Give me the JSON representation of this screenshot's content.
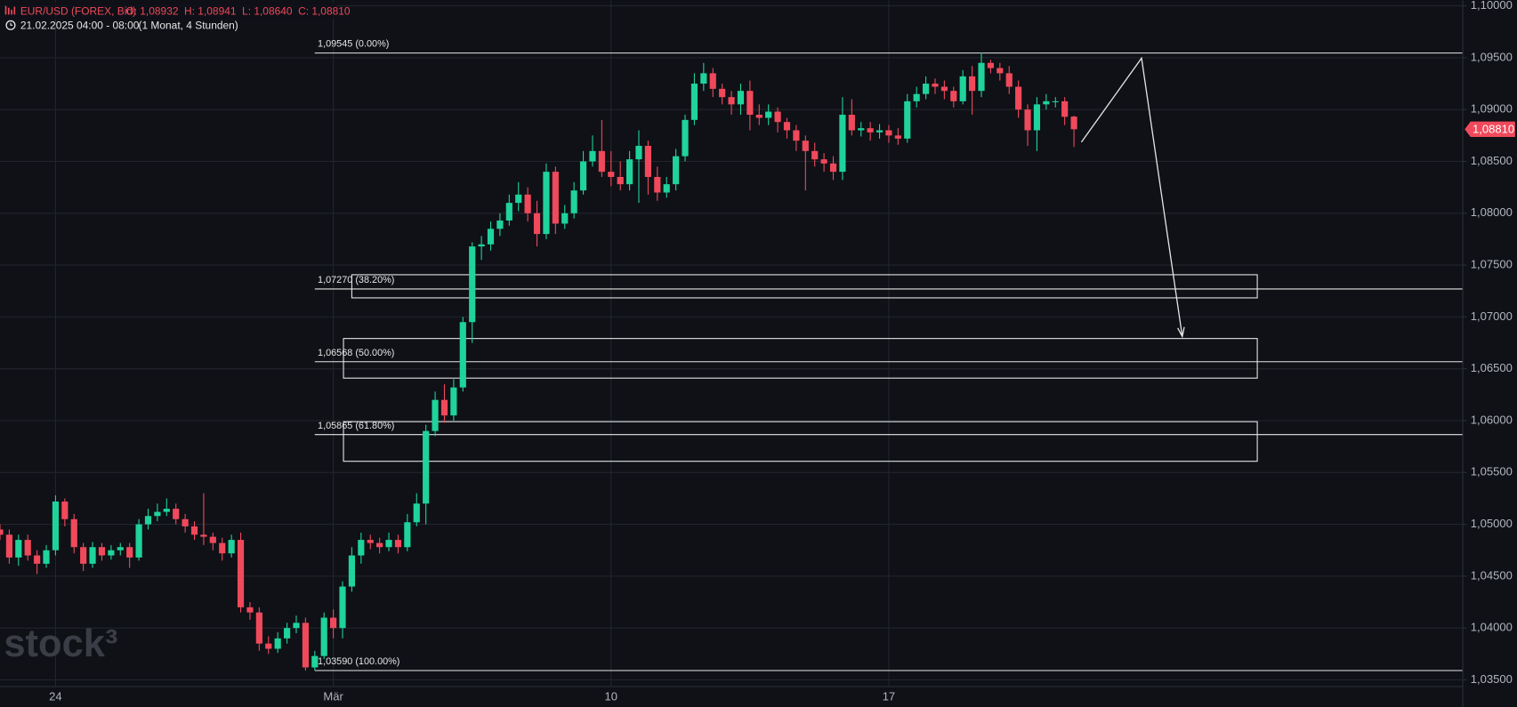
{
  "chart_data": {
    "type": "candlestick",
    "title": "EUR/USD (FOREX, Bid)",
    "ohlc_labels": [
      {
        "value": 1.08932,
        "label": "O: 1,08932"
      },
      {
        "value": 1.08941,
        "label": "H: 1,08941"
      },
      {
        "value": 1.0864,
        "label": "L: 1,08640"
      },
      {
        "value": 1.0881,
        "label": "C: 1,08810"
      }
    ],
    "subtitle": "21.02.2025 04:00 - 08:00",
    "period": "(1 Monat, 4 Stunden)",
    "watermark": "stock³",
    "up_color": "#1fd39b",
    "down_color": "#f0495b",
    "grid": true,
    "xlim": [
      0,
      158
    ],
    "xticks": [
      {
        "value": 6,
        "label": "24"
      },
      {
        "value": 36,
        "label": "Mär"
      },
      {
        "value": 66,
        "label": "10"
      },
      {
        "value": 96,
        "label": "17"
      }
    ],
    "ylim": [
      1.035,
      1.1
    ],
    "yticks": [
      {
        "value": 1.1,
        "label": "1,10000"
      },
      {
        "value": 1.095,
        "label": "1,09500"
      },
      {
        "value": 1.09,
        "label": "1,09000"
      },
      {
        "value": 1.085,
        "label": "1,08500"
      },
      {
        "value": 1.08,
        "label": "1,08000"
      },
      {
        "value": 1.075,
        "label": "1,07500"
      },
      {
        "value": 1.07,
        "label": "1,07000"
      },
      {
        "value": 1.065,
        "label": "1,06500"
      },
      {
        "value": 1.06,
        "label": "1,06000"
      },
      {
        "value": 1.055,
        "label": "1,05500"
      },
      {
        "value": 1.05,
        "label": "1,05000"
      },
      {
        "value": 1.045,
        "label": "1,04500"
      },
      {
        "value": 1.04,
        "label": "1,04000"
      },
      {
        "value": 1.035,
        "label": "1,03500"
      }
    ],
    "last_price": {
      "value": 1.0881,
      "label": "1,08810"
    },
    "fib_start": 34,
    "fib_levels": [
      {
        "value": 1.09545,
        "label": "1,09545 (0.00%)"
      },
      {
        "value": 1.0727,
        "label": "1,07270 (38.20%)"
      },
      {
        "value": 1.06568,
        "label": "1,06568 (50.00%)"
      },
      {
        "value": 1.05865,
        "label": "1,05865 (61.80%)"
      },
      {
        "value": 1.0359,
        "label": "1,03590 (100.00%)"
      }
    ],
    "zones": [
      {
        "x": [
          38,
          135.8
        ],
        "y": [
          1.07407,
          1.07184
        ]
      },
      {
        "x": [
          37.1,
          135.8
        ],
        "y": [
          1.06792,
          1.0641
        ]
      },
      {
        "x": [
          37.1,
          135.8
        ],
        "y": [
          1.0599,
          1.05608
        ]
      }
    ],
    "arrow": {
      "x": [
        116.8,
        123.3,
        127.7
      ],
      "y": [
        1.08685,
        1.09496,
        1.06811
      ]
    },
    "open": [
      1.0495,
      1.049,
      1.0468,
      1.0485,
      1.047,
      1.0462,
      1.0475,
      1.0522,
      1.0505,
      1.0478,
      1.0462,
      1.0478,
      1.047,
      1.0475,
      1.0478,
      1.0468,
      1.05,
      1.0508,
      1.0512,
      1.0515,
      1.0505,
      1.0498,
      1.049,
      1.0488,
      1.0482,
      1.0472,
      1.0485,
      1.042,
      1.0415,
      1.0385,
      1.038,
      1.039,
      1.04,
      1.0405,
      1.0362,
      1.0373,
      1.041,
      1.04,
      1.044,
      1.047,
      1.0485,
      1.0482,
      1.0478,
      1.0485,
      1.0478,
      1.0502,
      1.052,
      1.059,
      1.062,
      1.0605,
      1.0632,
      1.0695,
      1.0768,
      1.077,
      1.0785,
      1.0793,
      1.081,
      1.0818,
      1.08,
      1.078,
      1.084,
      1.079,
      1.08,
      1.0822,
      1.085,
      1.086,
      1.084,
      1.0835,
      1.0828,
      1.0852,
      1.0865,
      1.0835,
      1.082,
      1.0828,
      1.0855,
      1.089,
      1.0925,
      1.0935,
      1.092,
      1.0912,
      1.0905,
      1.0918,
      1.0895,
      1.0892,
      1.0898,
      1.0888,
      1.088,
      1.087,
      1.086,
      1.0852,
      1.0848,
      1.084,
      1.0895,
      1.088,
      1.0882,
      1.0878,
      1.088,
      1.0875,
      1.0872,
      1.0908,
      1.0915,
      1.0925,
      1.0922,
      1.0918,
      1.0908,
      1.0932,
      1.0918,
      1.0945,
      1.094,
      1.0935,
      1.0922,
      1.09,
      1.088,
      1.0905,
      1.0908,
      1.0908,
      1.08932
    ],
    "high": [
      1.05,
      1.0495,
      1.049,
      1.049,
      1.0475,
      1.048,
      1.0528,
      1.0525,
      1.051,
      1.0482,
      1.0483,
      1.0482,
      1.048,
      1.0482,
      1.0482,
      1.0505,
      1.0515,
      1.052,
      1.0525,
      1.052,
      1.051,
      1.0503,
      1.053,
      1.0492,
      1.0487,
      1.049,
      1.0492,
      1.0425,
      1.042,
      1.0392,
      1.0396,
      1.0405,
      1.0412,
      1.041,
      1.0378,
      1.0415,
      1.0418,
      1.0445,
      1.0478,
      1.0492,
      1.049,
      1.0487,
      1.0492,
      1.049,
      1.051,
      1.053,
      1.0596,
      1.0628,
      1.0635,
      1.064,
      1.07,
      1.0772,
      1.0778,
      1.0792,
      1.08,
      1.0818,
      1.083,
      1.0825,
      1.0812,
      1.0848,
      1.0845,
      1.0808,
      1.083,
      1.086,
      1.0875,
      1.089,
      1.086,
      1.085,
      1.086,
      1.088,
      1.087,
      1.0845,
      1.0835,
      1.0862,
      1.0895,
      1.0935,
      1.0945,
      1.094,
      1.0925,
      1.0918,
      1.0925,
      1.0928,
      1.0905,
      1.0905,
      1.0902,
      1.0892,
      1.0885,
      1.0875,
      1.0868,
      1.0858,
      1.0855,
      1.0912,
      1.091,
      1.0888,
      1.0888,
      1.0886,
      1.0885,
      1.0882,
      1.0915,
      1.0922,
      1.0932,
      1.093,
      1.0928,
      1.0922,
      1.0938,
      1.0942,
      1.0955,
      1.0948,
      1.0945,
      1.0942,
      1.0928,
      1.0905,
      1.0912,
      1.0915,
      1.0912,
      1.0912,
      1.08941
    ],
    "low": [
      1.0485,
      1.0462,
      1.046,
      1.0465,
      1.0452,
      1.0458,
      1.047,
      1.0498,
      1.0472,
      1.0455,
      1.0458,
      1.0465,
      1.0466,
      1.047,
      1.0458,
      1.0465,
      1.0495,
      1.0503,
      1.0508,
      1.05,
      1.0492,
      1.0485,
      1.048,
      1.0475,
      1.0465,
      1.0468,
      1.0415,
      1.0408,
      1.0378,
      1.0375,
      1.0376,
      1.0385,
      1.0395,
      1.0359,
      1.0359,
      1.037,
      1.039,
      1.039,
      1.0435,
      1.0462,
      1.0476,
      1.0472,
      1.0474,
      1.0472,
      1.0474,
      1.0498,
      1.05,
      1.0585,
      1.0598,
      1.06,
      1.0628,
      1.0675,
      1.0755,
      1.0764,
      1.0778,
      1.0788,
      1.0802,
      1.0792,
      1.0768,
      1.0775,
      1.078,
      1.0785,
      1.0795,
      1.0818,
      1.0845,
      1.0835,
      1.0826,
      1.0822,
      1.0822,
      1.081,
      1.0818,
      1.0812,
      1.0815,
      1.0822,
      1.085,
      1.0885,
      1.0918,
      1.0912,
      1.0905,
      1.0895,
      1.0895,
      1.088,
      1.0885,
      1.0885,
      1.0878,
      1.0872,
      1.086,
      1.0822,
      1.0845,
      1.084,
      1.0832,
      1.0832,
      1.0875,
      1.0874,
      1.087,
      1.0872,
      1.0868,
      1.0866,
      1.0868,
      1.0902,
      1.091,
      1.0915,
      1.091,
      1.0902,
      1.0905,
      1.0895,
      1.0912,
      1.0935,
      1.0928,
      1.0915,
      1.0892,
      1.0865,
      1.086,
      1.09,
      1.0902,
      1.0885,
      1.0864
    ],
    "close": [
      1.049,
      1.0468,
      1.0485,
      1.047,
      1.0462,
      1.0475,
      1.0522,
      1.0505,
      1.0478,
      1.0462,
      1.0478,
      1.047,
      1.0475,
      1.0478,
      1.0468,
      1.05,
      1.0508,
      1.0512,
      1.0515,
      1.0505,
      1.0498,
      1.049,
      1.0488,
      1.0482,
      1.0472,
      1.0485,
      1.042,
      1.0415,
      1.0385,
      1.038,
      1.039,
      1.04,
      1.0405,
      1.0362,
      1.0373,
      1.041,
      1.04,
      1.044,
      1.047,
      1.0485,
      1.0482,
      1.0478,
      1.0485,
      1.0478,
      1.0502,
      1.052,
      1.059,
      1.062,
      1.0605,
      1.0632,
      1.0695,
      1.0768,
      1.077,
      1.0785,
      1.0793,
      1.081,
      1.0818,
      1.08,
      1.078,
      1.084,
      1.079,
      1.08,
      1.0822,
      1.085,
      1.086,
      1.084,
      1.0835,
      1.0828,
      1.0852,
      1.0865,
      1.0835,
      1.082,
      1.0828,
      1.0855,
      1.089,
      1.0925,
      1.0935,
      1.092,
      1.0912,
      1.0905,
      1.0918,
      1.0895,
      1.0892,
      1.0898,
      1.0888,
      1.088,
      1.087,
      1.086,
      1.0852,
      1.0848,
      1.084,
      1.0895,
      1.088,
      1.0882,
      1.0878,
      1.088,
      1.0875,
      1.0872,
      1.0908,
      1.0915,
      1.0925,
      1.0922,
      1.0918,
      1.0908,
      1.0932,
      1.0918,
      1.0945,
      1.094,
      1.0935,
      1.0922,
      1.09,
      1.088,
      1.0905,
      1.0908,
      1.0908,
      1.0893,
      1.0881
    ]
  }
}
